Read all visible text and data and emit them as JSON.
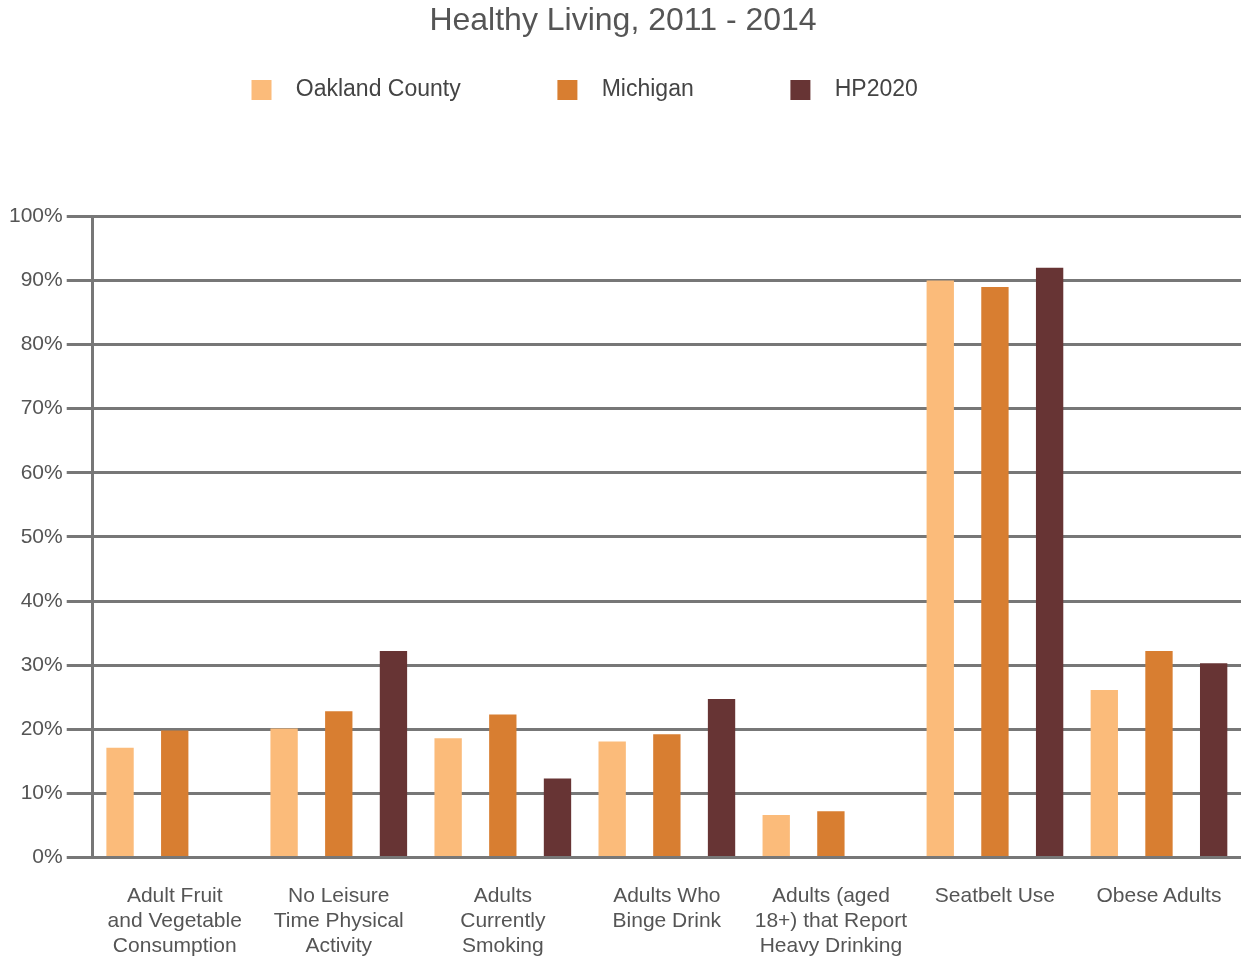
{
  "chart_data": {
    "type": "bar",
    "title": "Healthy Living, 2011 - 2014",
    "categories": [
      "Adult Fruit\nand Vegetable\nConsumption",
      "No Leisure\nTime Physical\nActivity",
      "Adults\nCurrently\nSmoking",
      "Adults Who\nBinge Drink",
      "Adults (aged\n18+) that Report\nHeavy Drinking",
      "Seatbelt Use",
      "Obese Adults"
    ],
    "series": [
      {
        "name": "Oakland County",
        "color": "#fbbb7a",
        "values": [
          17.1,
          20.1,
          18.6,
          18.1,
          6.6,
          90,
          26.1
        ]
      },
      {
        "name": "Michigan",
        "color": "#d87e31",
        "values": [
          19.8,
          22.8,
          22.3,
          19.2,
          7.2,
          89,
          32.2
        ]
      },
      {
        "name": "HP2020",
        "color": "#673434",
        "values": [
          null,
          32.2,
          12.3,
          24.7,
          null,
          92,
          30.3
        ]
      }
    ],
    "ylim": [
      0,
      100
    ],
    "yticks": [
      {
        "value": 0,
        "label": "0%"
      },
      {
        "value": 10,
        "label": "10%"
      },
      {
        "value": 20,
        "label": "20%"
      },
      {
        "value": 30,
        "label": "30%"
      },
      {
        "value": 40,
        "label": "40%"
      },
      {
        "value": 50,
        "label": "50%"
      },
      {
        "value": 60,
        "label": "60%"
      },
      {
        "value": 70,
        "label": "70%"
      },
      {
        "value": 80,
        "label": "80%"
      },
      {
        "value": 90,
        "label": "90%"
      },
      {
        "value": 100,
        "label": "100%"
      }
    ],
    "grid": "y",
    "legend": "top"
  }
}
